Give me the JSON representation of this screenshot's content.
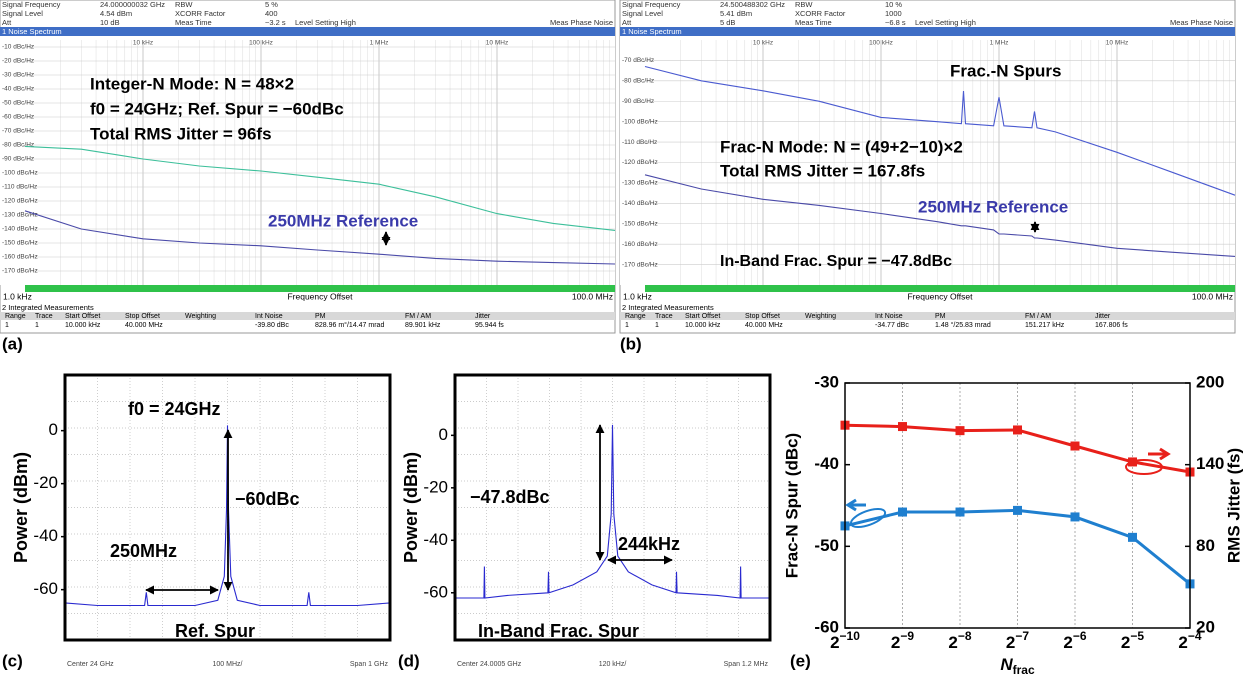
{
  "panel_labels": [
    "(a)",
    "(b)",
    "(c)",
    "(d)",
    "(e)"
  ],
  "chart_data": [
    {
      "type": "line",
      "xscale": "log",
      "header": [
        [
          "Signal Frequency",
          "24.000000032 GHz",
          "RBW",
          "5 %"
        ],
        [
          "Signal Level",
          "4.54 dBm",
          "XCORR Factor",
          "400"
        ],
        [
          "Att",
          "10 dB",
          "Meas Time",
          "~3.2 s",
          "Level Setting High"
        ]
      ],
      "header_right": "Meas Phase Noise",
      "window_title": "1 Noise Spectrum",
      "xlim": [
        1000,
        100000000
      ],
      "ylim": [
        -180,
        -5
      ],
      "xticks": [
        {
          "value": 10000,
          "label": "10 kHz"
        },
        {
          "value": 100000,
          "label": "100 kHz"
        },
        {
          "value": 1000000,
          "label": "1 MHz"
        },
        {
          "value": 10000000,
          "label": "10 MHz"
        }
      ],
      "yticks": [
        {
          "value": -10,
          "label": "-10 dBc/Hz"
        },
        {
          "value": -20,
          "label": "-20 dBc/Hz"
        },
        {
          "value": -30,
          "label": "-30 dBc/Hz"
        },
        {
          "value": -40,
          "label": "-40 dBc/Hz"
        },
        {
          "value": -50,
          "label": "-50 dBc/Hz"
        },
        {
          "value": -60,
          "label": "-60 dBc/Hz"
        },
        {
          "value": -70,
          "label": "-70 dBc/Hz"
        },
        {
          "value": -80,
          "label": "-80 dBc/Hz"
        },
        {
          "value": -90,
          "label": "-90 dBc/Hz"
        },
        {
          "value": -100,
          "label": "-100 dBc/Hz"
        },
        {
          "value": -110,
          "label": "-110 dBc/Hz"
        },
        {
          "value": -120,
          "label": "-120 dBc/Hz"
        },
        {
          "value": -130,
          "label": "-130 dBc/Hz"
        },
        {
          "value": -140,
          "label": "-140 dBc/Hz"
        },
        {
          "value": -150,
          "label": "-150 dBc/Hz"
        },
        {
          "value": -160,
          "label": "-160 dBc/Hz"
        },
        {
          "value": -170,
          "label": "-170 dBc/Hz"
        }
      ],
      "grid": true,
      "x": [
        1000,
        3000,
        10000,
        30000,
        100000,
        300000,
        1000000,
        3000000,
        10000000,
        30000000,
        100000000
      ],
      "series": [
        {
          "color": "#3cbf9a",
          "values": [
            -81,
            -83,
            -90,
            -95,
            -98.6,
            -103,
            -108,
            -117,
            -129,
            -136,
            -141
          ]
        },
        {
          "color": "#4a4aa8",
          "values": [
            -127,
            -140,
            -147,
            -150,
            -152,
            -155,
            -158,
            -161,
            -163,
            -164,
            -165
          ]
        }
      ],
      "annotations": [
        "Integer-N Mode: N = 48×2",
        "f0 = 24GHz; Ref. Spur = −60dBc",
        "Total RMS Jitter = 96fs",
        "250MHz Reference"
      ],
      "x_start_label": "1.0 kHz",
      "xlabel": "Frequency Offset",
      "x_end_label": "100.0 MHz",
      "table": {
        "title": "2 Integrated Measurements",
        "columns": [
          "Range",
          "Trace",
          "Start Offset",
          "Stop Offset",
          "Weighting",
          "Int Noise",
          "PM",
          "FM / AM",
          "Jitter"
        ],
        "rows": [
          [
            "1",
            "1",
            "10.000 kHz",
            "40.000 MHz",
            "-39.80 dBc",
            "828.96 m°/14.47 mrad",
            "89.901 kHz",
            "95.944 fs"
          ]
        ]
      }
    },
    {
      "type": "line",
      "xscale": "log",
      "header": [
        [
          "Signal Frequency",
          "24.500488302 GHz",
          "RBW",
          "10 %"
        ],
        [
          "Signal Level",
          "5.41 dBm",
          "XCORR Factor",
          "1000"
        ],
        [
          "Att",
          "5 dB",
          "Meas Time",
          "~6.8 s",
          "Level Setting High"
        ]
      ],
      "header_right": "Meas Phase Noise",
      "window_title": "1 Noise Spectrum",
      "xlim": [
        1000,
        100000000
      ],
      "ylim": [
        -180,
        -60
      ],
      "xticks": [
        {
          "value": 10000,
          "label": "10 kHz"
        },
        {
          "value": 100000,
          "label": "100 kHz"
        },
        {
          "value": 1000000,
          "label": "1 MHz"
        },
        {
          "value": 10000000,
          "label": "10 MHz"
        }
      ],
      "yticks": [
        {
          "value": -70,
          "label": "-70 dBc/Hz"
        },
        {
          "value": -80,
          "label": "-80 dBc/Hz"
        },
        {
          "value": -90,
          "label": "-90 dBc/Hz"
        },
        {
          "value": -100,
          "label": "-100 dBc/Hz"
        },
        {
          "value": -110,
          "label": "-110 dBc/Hz"
        },
        {
          "value": -120,
          "label": "-120 dBc/Hz"
        },
        {
          "value": -130,
          "label": "-130 dBc/Hz"
        },
        {
          "value": -140,
          "label": "-140 dBc/Hz"
        },
        {
          "value": -150,
          "label": "-150 dBc/Hz"
        },
        {
          "value": -160,
          "label": "-160 dBc/Hz"
        },
        {
          "value": -170,
          "label": "-170 dBc/Hz"
        }
      ],
      "grid": true,
      "x": [
        1000,
        3000,
        10000,
        30000,
        100000,
        300000,
        480000,
        500000,
        520000,
        900000,
        1000000,
        1100000,
        1900000,
        2000000,
        2100000,
        3000000,
        10000000,
        30000000,
        100000000
      ],
      "series": [
        {
          "color": "#4a5ad0",
          "values": [
            -73,
            -80,
            -84.9,
            -90,
            -97.9,
            -100,
            -101,
            -85,
            -101,
            -102,
            -88,
            -102,
            -103,
            -95,
            -103,
            -105,
            -115,
            -125,
            -136
          ]
        },
        {
          "color": "#4a4aa8",
          "values": [
            -126,
            -133,
            -138,
            -141,
            -145,
            -149,
            -151,
            -151,
            -151,
            -153,
            -155,
            -155,
            -156,
            -157,
            -157,
            -158,
            -162,
            -164,
            -166
          ]
        }
      ],
      "annotations": [
        "Frac.-N Spurs",
        "Frac-N Mode: N = (49+2−10)×2",
        "Total RMS Jitter = 167.8fs",
        "250MHz Reference",
        "In-Band Frac. Spur = −47.8dBc"
      ],
      "x_start_label": "1.0 kHz",
      "xlabel": "Frequency Offset",
      "x_end_label": "100.0 MHz",
      "table": {
        "title": "2 Integrated Measurements",
        "columns": [
          "Range",
          "Trace",
          "Start Offset",
          "Stop Offset",
          "Weighting",
          "Int Noise",
          "PM",
          "FM / AM",
          "Jitter"
        ],
        "rows": [
          [
            "1",
            "1",
            "10.000 kHz",
            "40.000 MHz",
            "-34.77 dBc",
            "1.48 °/25.83 mrad",
            "151.217 kHz",
            "167.806 fs"
          ]
        ]
      }
    },
    {
      "type": "line",
      "ylabel": "Power (dBm)",
      "xlim": [
        -500,
        500
      ],
      "ylim": [
        -79,
        21
      ],
      "yticks": [
        0,
        -20,
        -40,
        -60
      ],
      "x": [
        -500,
        -400,
        -300,
        -255,
        -250,
        -245,
        -100,
        -30,
        -10,
        -3,
        0,
        3,
        10,
        30,
        100,
        245,
        250,
        255,
        300,
        400,
        500
      ],
      "series": [
        {
          "color": "#2a2ad0",
          "values": [
            -65,
            -66,
            -66,
            -66,
            -61,
            -66,
            -66,
            -64,
            -55,
            -30,
            2,
            -30,
            -55,
            -64,
            -66,
            -66,
            -61,
            -66,
            -66,
            -66,
            -65
          ]
        }
      ],
      "annotations": [
        "f0 = 24GHz",
        "−60dBc",
        "250MHz",
        "Ref. Spur"
      ],
      "footer": [
        "Center 24 GHz",
        "100 MHz/",
        "Span 1 GHz"
      ]
    },
    {
      "type": "line",
      "ylabel": "Power (dBm)",
      "xlim": [
        -600,
        600
      ],
      "ylim": [
        -78,
        23
      ],
      "yticks": [
        0,
        -20,
        -40,
        -60
      ],
      "x": [
        -600,
        -490,
        -488,
        -486,
        -400,
        -246,
        -244,
        -242,
        -150,
        -60,
        -20,
        -5,
        0,
        5,
        20,
        60,
        150,
        242,
        244,
        246,
        400,
        486,
        488,
        490,
        600
      ],
      "series": [
        {
          "color": "#2a2ad0",
          "values": [
            -62,
            -62,
            -50,
            -62,
            -61,
            -60,
            -52,
            -60,
            -57,
            -52,
            -46,
            -30,
            4,
            -30,
            -46,
            -52,
            -57,
            -60,
            -52,
            -60,
            -61,
            -62,
            -50,
            -62,
            -62
          ]
        }
      ],
      "annotations": [
        "−47.8dBc",
        "244kHz",
        "In-Band Frac. Spur"
      ],
      "footer": [
        "Center 24.0005 GHz",
        "120 kHz/",
        "Span 1.2 MHz"
      ]
    },
    {
      "type": "line",
      "categories": [
        "2−10",
        "2−9",
        "2−8",
        "2−7",
        "2−6",
        "2−5",
        "2−4"
      ],
      "xlabel": {
        "main": "N",
        "sub": "frac"
      },
      "ylabel": "Frac-N Spur (dBc)",
      "y2label": "RMS Jitter (fs)",
      "ylim": [
        -60,
        -30
      ],
      "yticks": [
        -30,
        -40,
        -50,
        -60
      ],
      "y2lim": [
        20,
        200
      ],
      "y2ticks": [
        20,
        80,
        140,
        200
      ],
      "series": [
        {
          "color": "#1f7fcf",
          "values": [
            -47.5,
            -45.8,
            -45.8,
            -45.6,
            -46.4,
            -48.9,
            -54.6
          ]
        },
        {
          "color": "#e8201a",
          "axis": "y2",
          "values": [
            169,
            168,
            165,
            165.5,
            153.7,
            142,
            134.6
          ]
        }
      ]
    }
  ]
}
